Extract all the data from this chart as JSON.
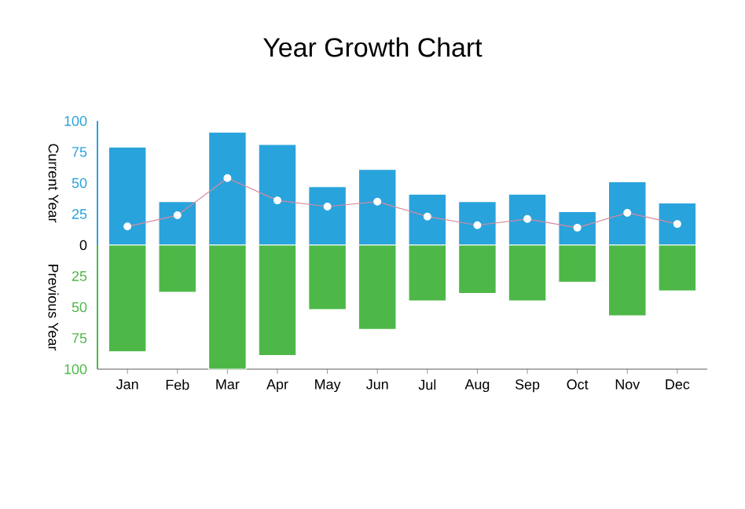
{
  "chart_data": {
    "type": "bar",
    "title": "Year Growth Chart",
    "categories": [
      "Jan",
      "Feb",
      "Mar",
      "Apr",
      "May",
      "Jun",
      "Jul",
      "Aug",
      "Sep",
      "Oct",
      "Nov",
      "Dec"
    ],
    "ylabel": "Current Year",
    "annotations": [
      "Previous Year"
    ],
    "series": [
      {
        "color": "#29a3dc",
        "values": [
          79,
          35,
          91,
          81,
          47,
          61,
          41,
          35,
          41,
          27,
          51,
          34
        ]
      },
      {
        "color": "#4db848",
        "values": [
          -86,
          -38,
          -100,
          -89,
          -52,
          -68,
          -45,
          -39,
          -45,
          -30,
          -57,
          -37
        ]
      },
      {
        "type": "line",
        "color": "#d98a9b",
        "marker": "circle",
        "values": [
          15,
          24,
          54,
          36,
          31,
          35,
          23,
          16,
          21,
          14,
          26,
          17
        ]
      }
    ],
    "ylim": [
      -100,
      100
    ],
    "yticks": [
      {
        "value": -100,
        "label": "100"
      },
      {
        "value": -75,
        "label": "75"
      },
      {
        "value": -50,
        "label": "50"
      },
      {
        "value": -25,
        "label": "25"
      },
      0,
      25,
      50,
      75,
      100
    ],
    "stacked": true,
    "grid": false
  }
}
